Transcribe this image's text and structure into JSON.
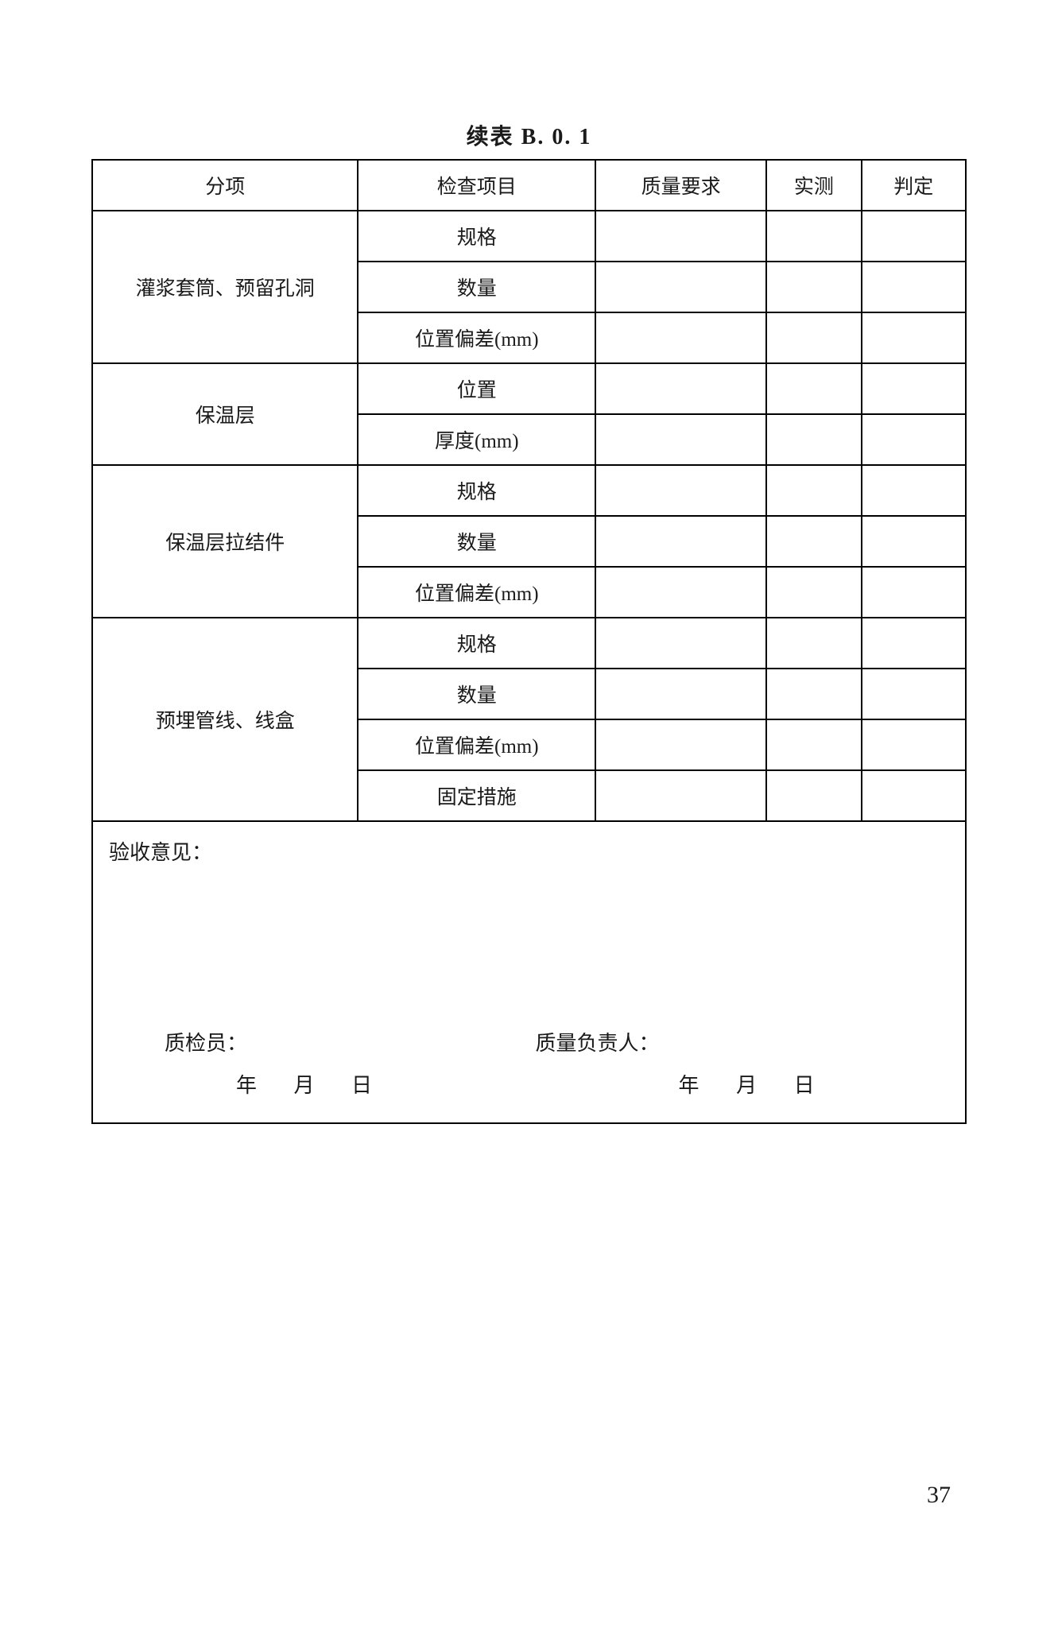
{
  "title": "续表 B. 0. 1",
  "headers": {
    "group": "分项",
    "item": "检查项目",
    "req": "质量要求",
    "measure": "实测",
    "judge": "判定"
  },
  "sections": [
    {
      "group": "灌浆套筒、预留孔洞",
      "items": [
        "规格",
        "数量",
        "位置偏差(mm)"
      ]
    },
    {
      "group": "保温层",
      "items": [
        "位置",
        "厚度(mm)"
      ]
    },
    {
      "group": "保温层拉结件",
      "items": [
        "规格",
        "数量",
        "位置偏差(mm)"
      ]
    },
    {
      "group": "预埋管线、线盒",
      "items": [
        "规格",
        "数量",
        "位置偏差(mm)",
        "固定措施"
      ]
    }
  ],
  "footer": {
    "opinion_label": "验收意见：",
    "inspector_label": "质检员：",
    "responsible_label": "质量负责人：",
    "year": "年",
    "month": "月",
    "day": "日"
  },
  "page_number": "37"
}
